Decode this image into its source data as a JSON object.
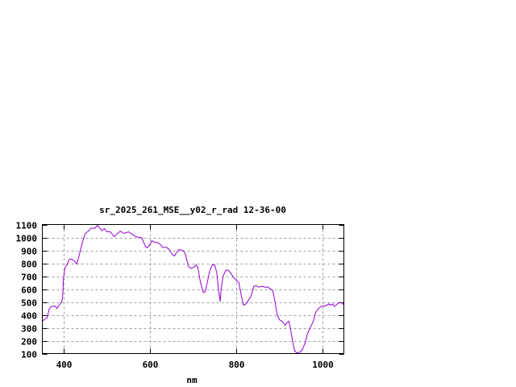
{
  "chart_data": {
    "type": "line",
    "title": "sr_2025_261_MSE__y02_r_rad 12-36-00",
    "xlabel": "nm",
    "ylabel": "",
    "xlim": [
      350,
      1050
    ],
    "ylim": [
      100,
      1100
    ],
    "xticks": [
      400,
      600,
      800,
      1000
    ],
    "yticks": [
      100,
      200,
      300,
      400,
      500,
      600,
      700,
      800,
      900,
      1000,
      1100
    ],
    "grid": true,
    "legend": "none",
    "series": [
      {
        "color": "#9400d3",
        "x": [
          350,
          355,
          361,
          366,
          371,
          377,
          380,
          384,
          389,
          394,
          397,
          399,
          402,
          407,
          413,
          419,
          425,
          430,
          434,
          439,
          445,
          450,
          458,
          463,
          469,
          473,
          478,
          483,
          488,
          494,
          500,
          508,
          517,
          523,
          531,
          540,
          550,
          559,
          567,
          573,
          581,
          589,
          593,
          600,
          604,
          610,
          617,
          625,
          629,
          638,
          645,
          652,
          657,
          661,
          667,
          677,
          682,
          689,
          695,
          701,
          707,
          711,
          717,
          724,
          728,
          733,
          739,
          745,
          750,
          755,
          759,
          763,
          765,
          770,
          776,
          782,
          789,
          794,
          801,
          806,
          812,
          817,
          823,
          829,
          835,
          841,
          847,
          853,
          860,
          866,
          874,
          879,
          885,
          890,
          895,
          901,
          907,
          914,
          918,
          922,
          926,
          931,
          936,
          940,
          948,
          954,
          960,
          966,
          973,
          979,
          985,
          991,
          998,
          1004,
          1010,
          1015,
          1019,
          1024,
          1028,
          1035,
          1041,
          1047,
          1050
        ],
        "y": [
          350,
          365,
          377,
          444,
          465,
          469,
          465,
          450,
          475,
          496,
          527,
          673,
          760,
          788,
          833,
          829,
          815,
          794,
          840,
          912,
          985,
          1031,
          1052,
          1073,
          1069,
          1075,
          1094,
          1073,
          1052,
          1069,
          1044,
          1044,
          1006,
          1027,
          1048,
          1031,
          1044,
          1023,
          1006,
          1002,
          996,
          933,
          919,
          944,
          975,
          965,
          960,
          944,
          923,
          923,
          906,
          865,
          856,
          881,
          906,
          898,
          871,
          777,
          760,
          767,
          788,
          767,
          652,
          573,
          579,
          652,
          746,
          788,
          788,
          725,
          590,
          502,
          600,
          704,
          746,
          746,
          715,
          690,
          663,
          652,
          548,
          475,
          485,
          517,
          548,
          621,
          625,
          615,
          621,
          615,
          615,
          600,
          590,
          506,
          402,
          360,
          350,
          319,
          340,
          350,
          298,
          194,
          121,
          106,
          110,
          131,
          183,
          256,
          308,
          350,
          423,
          448,
          469,
          465,
          475,
          485,
          475,
          485,
          465,
          485,
          496,
          490,
          475
        ]
      }
    ]
  }
}
